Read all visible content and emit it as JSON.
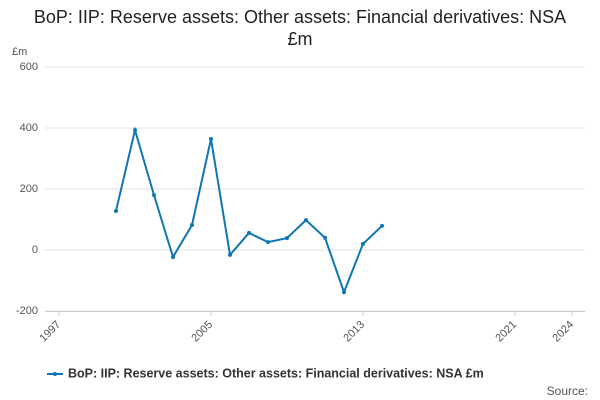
{
  "chart_data": {
    "type": "line",
    "title": "BoP: IIP: Reserve assets: Other assets: Financial derivatives: NSA £m",
    "y_unit": "£m",
    "source": "Source:",
    "x": [
      2000,
      2001,
      2002,
      2003,
      2004,
      2005,
      2006,
      2007,
      2008,
      2009,
      2010,
      2011,
      2012,
      2013,
      2014
    ],
    "series": [
      {
        "name": "BoP: IIP: Reserve assets: Other assets: Financial derivatives: NSA £m",
        "color": "#0f76b5",
        "values": [
          128,
          393,
          180,
          -23,
          82,
          364,
          -16,
          56,
          26,
          39,
          98,
          40,
          -138,
          20,
          79
        ]
      }
    ],
    "xlim": [
      1997,
      2024
    ],
    "xticks": [
      1997,
      2005,
      2013,
      2021,
      2024
    ],
    "ylim": [
      -200,
      600
    ],
    "yticks": [
      -200,
      0,
      200,
      400,
      600
    ],
    "grid": true,
    "legend": "bottom"
  }
}
